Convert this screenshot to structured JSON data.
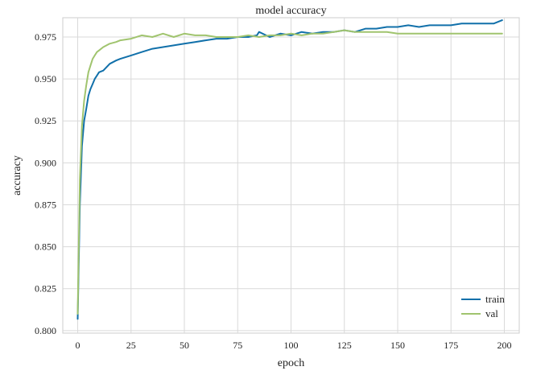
{
  "chart_data": {
    "type": "line",
    "title": "model accuracy",
    "xlabel": "epoch",
    "ylabel": "accuracy",
    "xlim": [
      -7,
      207
    ],
    "ylim": [
      0.7985,
      0.9865
    ],
    "xticks": [
      0,
      25,
      50,
      75,
      100,
      125,
      150,
      175,
      200
    ],
    "xtick_labels": [
      "0",
      "25",
      "50",
      "75",
      "100",
      "125",
      "150",
      "175",
      "200"
    ],
    "yticks": [
      0.8,
      0.825,
      0.85,
      0.875,
      0.9,
      0.925,
      0.95,
      0.975
    ],
    "ytick_labels": [
      "0.800",
      "0.825",
      "0.850",
      "0.875",
      "0.900",
      "0.925",
      "0.950",
      "0.975"
    ],
    "grid": true,
    "legend_position": "lower-right",
    "series": [
      {
        "name": "train",
        "color": "#1170aa",
        "x": [
          0,
          1,
          2,
          3,
          4,
          5,
          6,
          7,
          8,
          9,
          10,
          12,
          15,
          18,
          20,
          25,
          30,
          35,
          40,
          45,
          50,
          55,
          60,
          65,
          70,
          75,
          80,
          84,
          85,
          90,
          95,
          100,
          105,
          110,
          115,
          120,
          125,
          130,
          135,
          140,
          145,
          150,
          155,
          160,
          165,
          170,
          175,
          180,
          185,
          190,
          195,
          199
        ],
        "values": [
          0.807,
          0.875,
          0.91,
          0.925,
          0.932,
          0.94,
          0.944,
          0.947,
          0.95,
          0.952,
          0.954,
          0.955,
          0.959,
          0.961,
          0.962,
          0.964,
          0.966,
          0.968,
          0.969,
          0.97,
          0.971,
          0.972,
          0.973,
          0.974,
          0.974,
          0.975,
          0.975,
          0.976,
          0.978,
          0.975,
          0.977,
          0.976,
          0.978,
          0.977,
          0.978,
          0.978,
          0.979,
          0.978,
          0.98,
          0.98,
          0.981,
          0.981,
          0.982,
          0.981,
          0.982,
          0.982,
          0.982,
          0.983,
          0.983,
          0.983,
          0.983,
          0.985
        ]
      },
      {
        "name": "val",
        "color": "#a0c46e",
        "x": [
          0,
          1,
          2,
          3,
          4,
          5,
          6,
          7,
          8,
          9,
          10,
          12,
          15,
          18,
          20,
          25,
          30,
          35,
          40,
          45,
          50,
          55,
          60,
          65,
          70,
          75,
          80,
          85,
          90,
          95,
          100,
          105,
          110,
          115,
          120,
          125,
          130,
          135,
          140,
          145,
          150,
          155,
          160,
          165,
          170,
          175,
          180,
          185,
          190,
          195,
          199
        ],
        "values": [
          0.81,
          0.89,
          0.922,
          0.937,
          0.946,
          0.954,
          0.958,
          0.962,
          0.964,
          0.966,
          0.967,
          0.969,
          0.971,
          0.972,
          0.973,
          0.974,
          0.976,
          0.975,
          0.977,
          0.975,
          0.977,
          0.976,
          0.976,
          0.975,
          0.975,
          0.975,
          0.976,
          0.975,
          0.976,
          0.976,
          0.977,
          0.976,
          0.977,
          0.977,
          0.978,
          0.979,
          0.978,
          0.978,
          0.978,
          0.978,
          0.977,
          0.977,
          0.977,
          0.977,
          0.977,
          0.977,
          0.977,
          0.977,
          0.977,
          0.977,
          0.977
        ]
      }
    ]
  }
}
